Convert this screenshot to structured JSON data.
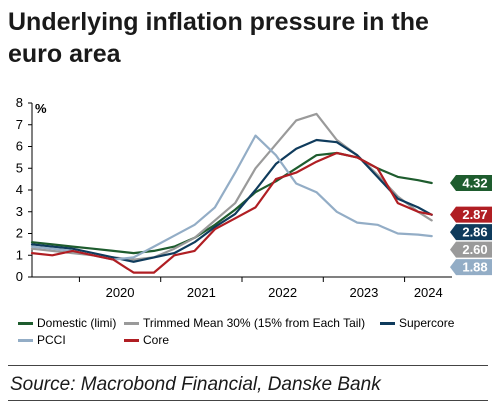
{
  "title": "Underlying inflation pressure in the euro area",
  "source": "Source: Macrobond Financial, Danske Bank",
  "chart_data": {
    "type": "line",
    "title": "Underlying inflation pressure in the euro area",
    "ylabel": "%",
    "ylim": [
      0,
      8
    ],
    "yticks": [
      "0",
      "1",
      "2",
      "3",
      "4",
      "5",
      "6",
      "7",
      "8"
    ],
    "xlim": [
      "2019-06",
      "2024-08"
    ],
    "xtick_labels": [
      "2020",
      "2021",
      "2022",
      "2023",
      "2024"
    ],
    "xtick_positions": [
      "2020-01",
      "2021-01",
      "2022-01",
      "2023-01",
      "2024-01"
    ],
    "legend_position": "bottom",
    "series": [
      {
        "name": "Domestic (limi)",
        "color": "#1e5c2e",
        "end_label": "4.32",
        "x": [
          "2019-06",
          "2019-09",
          "2019-12",
          "2020-03",
          "2020-06",
          "2020-09",
          "2020-12",
          "2021-03",
          "2021-06",
          "2021-09",
          "2021-12",
          "2022-03",
          "2022-06",
          "2022-09",
          "2022-12",
          "2023-03",
          "2023-06",
          "2023-09",
          "2023-12",
          "2024-03",
          "2024-05"
        ],
        "y": [
          1.6,
          1.5,
          1.4,
          1.3,
          1.2,
          1.1,
          1.2,
          1.4,
          1.8,
          2.4,
          3.1,
          3.9,
          4.4,
          5.0,
          5.6,
          5.7,
          5.5,
          5.0,
          4.6,
          4.45,
          4.32
        ]
      },
      {
        "name": "Trimmed Mean 30% (15% from Each Tail)",
        "color": "#9a9a9a",
        "end_label": "2.60",
        "x": [
          "2019-06",
          "2019-09",
          "2019-12",
          "2020-03",
          "2020-06",
          "2020-09",
          "2020-12",
          "2021-03",
          "2021-06",
          "2021-09",
          "2021-12",
          "2022-03",
          "2022-06",
          "2022-09",
          "2022-12",
          "2023-03",
          "2023-06",
          "2023-09",
          "2023-12",
          "2024-03",
          "2024-05"
        ],
        "y": [
          1.3,
          1.2,
          1.1,
          1.0,
          0.9,
          0.8,
          0.9,
          1.3,
          1.8,
          2.6,
          3.4,
          5.0,
          6.1,
          7.2,
          7.5,
          6.3,
          5.6,
          4.7,
          3.7,
          3.0,
          2.6
        ]
      },
      {
        "name": "Supercore",
        "color": "#0f3b5c",
        "end_label": "2.86",
        "x": [
          "2019-06",
          "2019-09",
          "2019-12",
          "2020-03",
          "2020-06",
          "2020-09",
          "2020-12",
          "2021-03",
          "2021-06",
          "2021-09",
          "2021-12",
          "2022-03",
          "2022-06",
          "2022-09",
          "2022-12",
          "2023-03",
          "2023-06",
          "2023-09",
          "2023-12",
          "2024-03",
          "2024-05"
        ],
        "y": [
          1.5,
          1.4,
          1.3,
          1.1,
          0.9,
          0.7,
          0.9,
          1.1,
          1.6,
          2.3,
          2.9,
          4.0,
          5.2,
          5.9,
          6.3,
          6.2,
          5.6,
          4.6,
          3.6,
          3.2,
          2.86
        ]
      },
      {
        "name": "PCCI",
        "color": "#93adc6",
        "end_label": "1.88",
        "x": [
          "2019-06",
          "2019-09",
          "2019-12",
          "2020-03",
          "2020-06",
          "2020-09",
          "2020-12",
          "2021-03",
          "2021-06",
          "2021-09",
          "2021-12",
          "2022-03",
          "2022-06",
          "2022-09",
          "2022-12",
          "2023-03",
          "2023-06",
          "2023-09",
          "2023-12",
          "2024-03",
          "2024-05"
        ],
        "y": [
          1.4,
          1.3,
          1.2,
          1.0,
          0.8,
          0.9,
          1.4,
          1.9,
          2.4,
          3.2,
          4.8,
          6.5,
          5.6,
          4.3,
          3.9,
          3.0,
          2.5,
          2.4,
          2.0,
          1.95,
          1.88
        ]
      },
      {
        "name": "Core",
        "color": "#b01e23",
        "end_label": "2.87",
        "x": [
          "2019-06",
          "2019-09",
          "2019-12",
          "2020-03",
          "2020-06",
          "2020-09",
          "2020-12",
          "2021-03",
          "2021-06",
          "2021-09",
          "2021-12",
          "2022-03",
          "2022-06",
          "2022-09",
          "2022-12",
          "2023-03",
          "2023-06",
          "2023-09",
          "2023-12",
          "2024-03",
          "2024-05"
        ],
        "y": [
          1.1,
          1.0,
          1.2,
          1.0,
          0.8,
          0.2,
          0.2,
          1.0,
          1.2,
          2.2,
          2.7,
          3.2,
          4.5,
          4.8,
          5.3,
          5.7,
          5.5,
          5.0,
          3.4,
          3.0,
          2.87
        ]
      }
    ]
  }
}
